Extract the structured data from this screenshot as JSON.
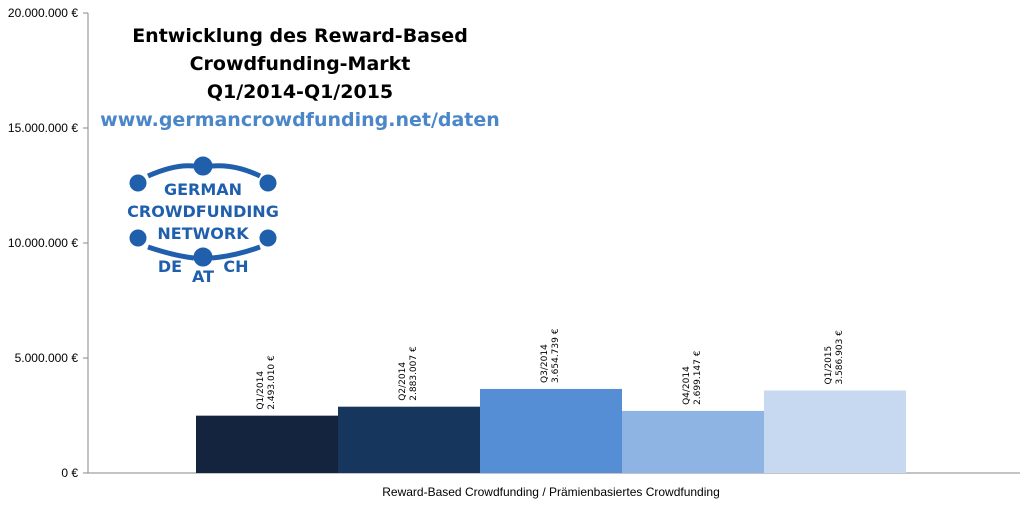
{
  "chart_data": {
    "type": "bar",
    "title": [
      "Entwicklung des Reward-Based",
      "Crowdfunding-Markt",
      "Q1/2014-Q1/2015"
    ],
    "subtitle": "www.germancrowdfunding.net/daten",
    "xlabel": "Reward-Based Crowdfunding / Prämienbasiertes Crowdfunding",
    "ylabel": "",
    "ylim": [
      0,
      20000000
    ],
    "yticks": [
      0,
      5000000,
      10000000,
      15000000,
      20000000
    ],
    "ytick_labels": [
      "0 €",
      "5.000.000 €",
      "10.000.000 €",
      "15.000.000 €",
      "20.000.000 €"
    ],
    "grid": false,
    "categories": [
      "Q1/2014",
      "Q2/2014",
      "Q3/2014",
      "Q4/2014",
      "Q1/2015"
    ],
    "values": [
      2493010,
      2883007,
      3654739,
      2699147,
      3586903
    ],
    "value_labels": [
      "2.493.010 €",
      "2.883.007 €",
      "3.654.739 €",
      "2.699.147 €",
      "3.586.903 €"
    ],
    "colors": [
      "#14243e",
      "#17365d",
      "#558ed5",
      "#8eb4e3",
      "#c6d9f1"
    ]
  },
  "logo": {
    "lines": [
      "GERMAN",
      "CROWDFUNDING",
      "NETWORK"
    ],
    "countries": [
      "DE",
      "AT",
      "CH"
    ],
    "color": "#1f5fac"
  }
}
